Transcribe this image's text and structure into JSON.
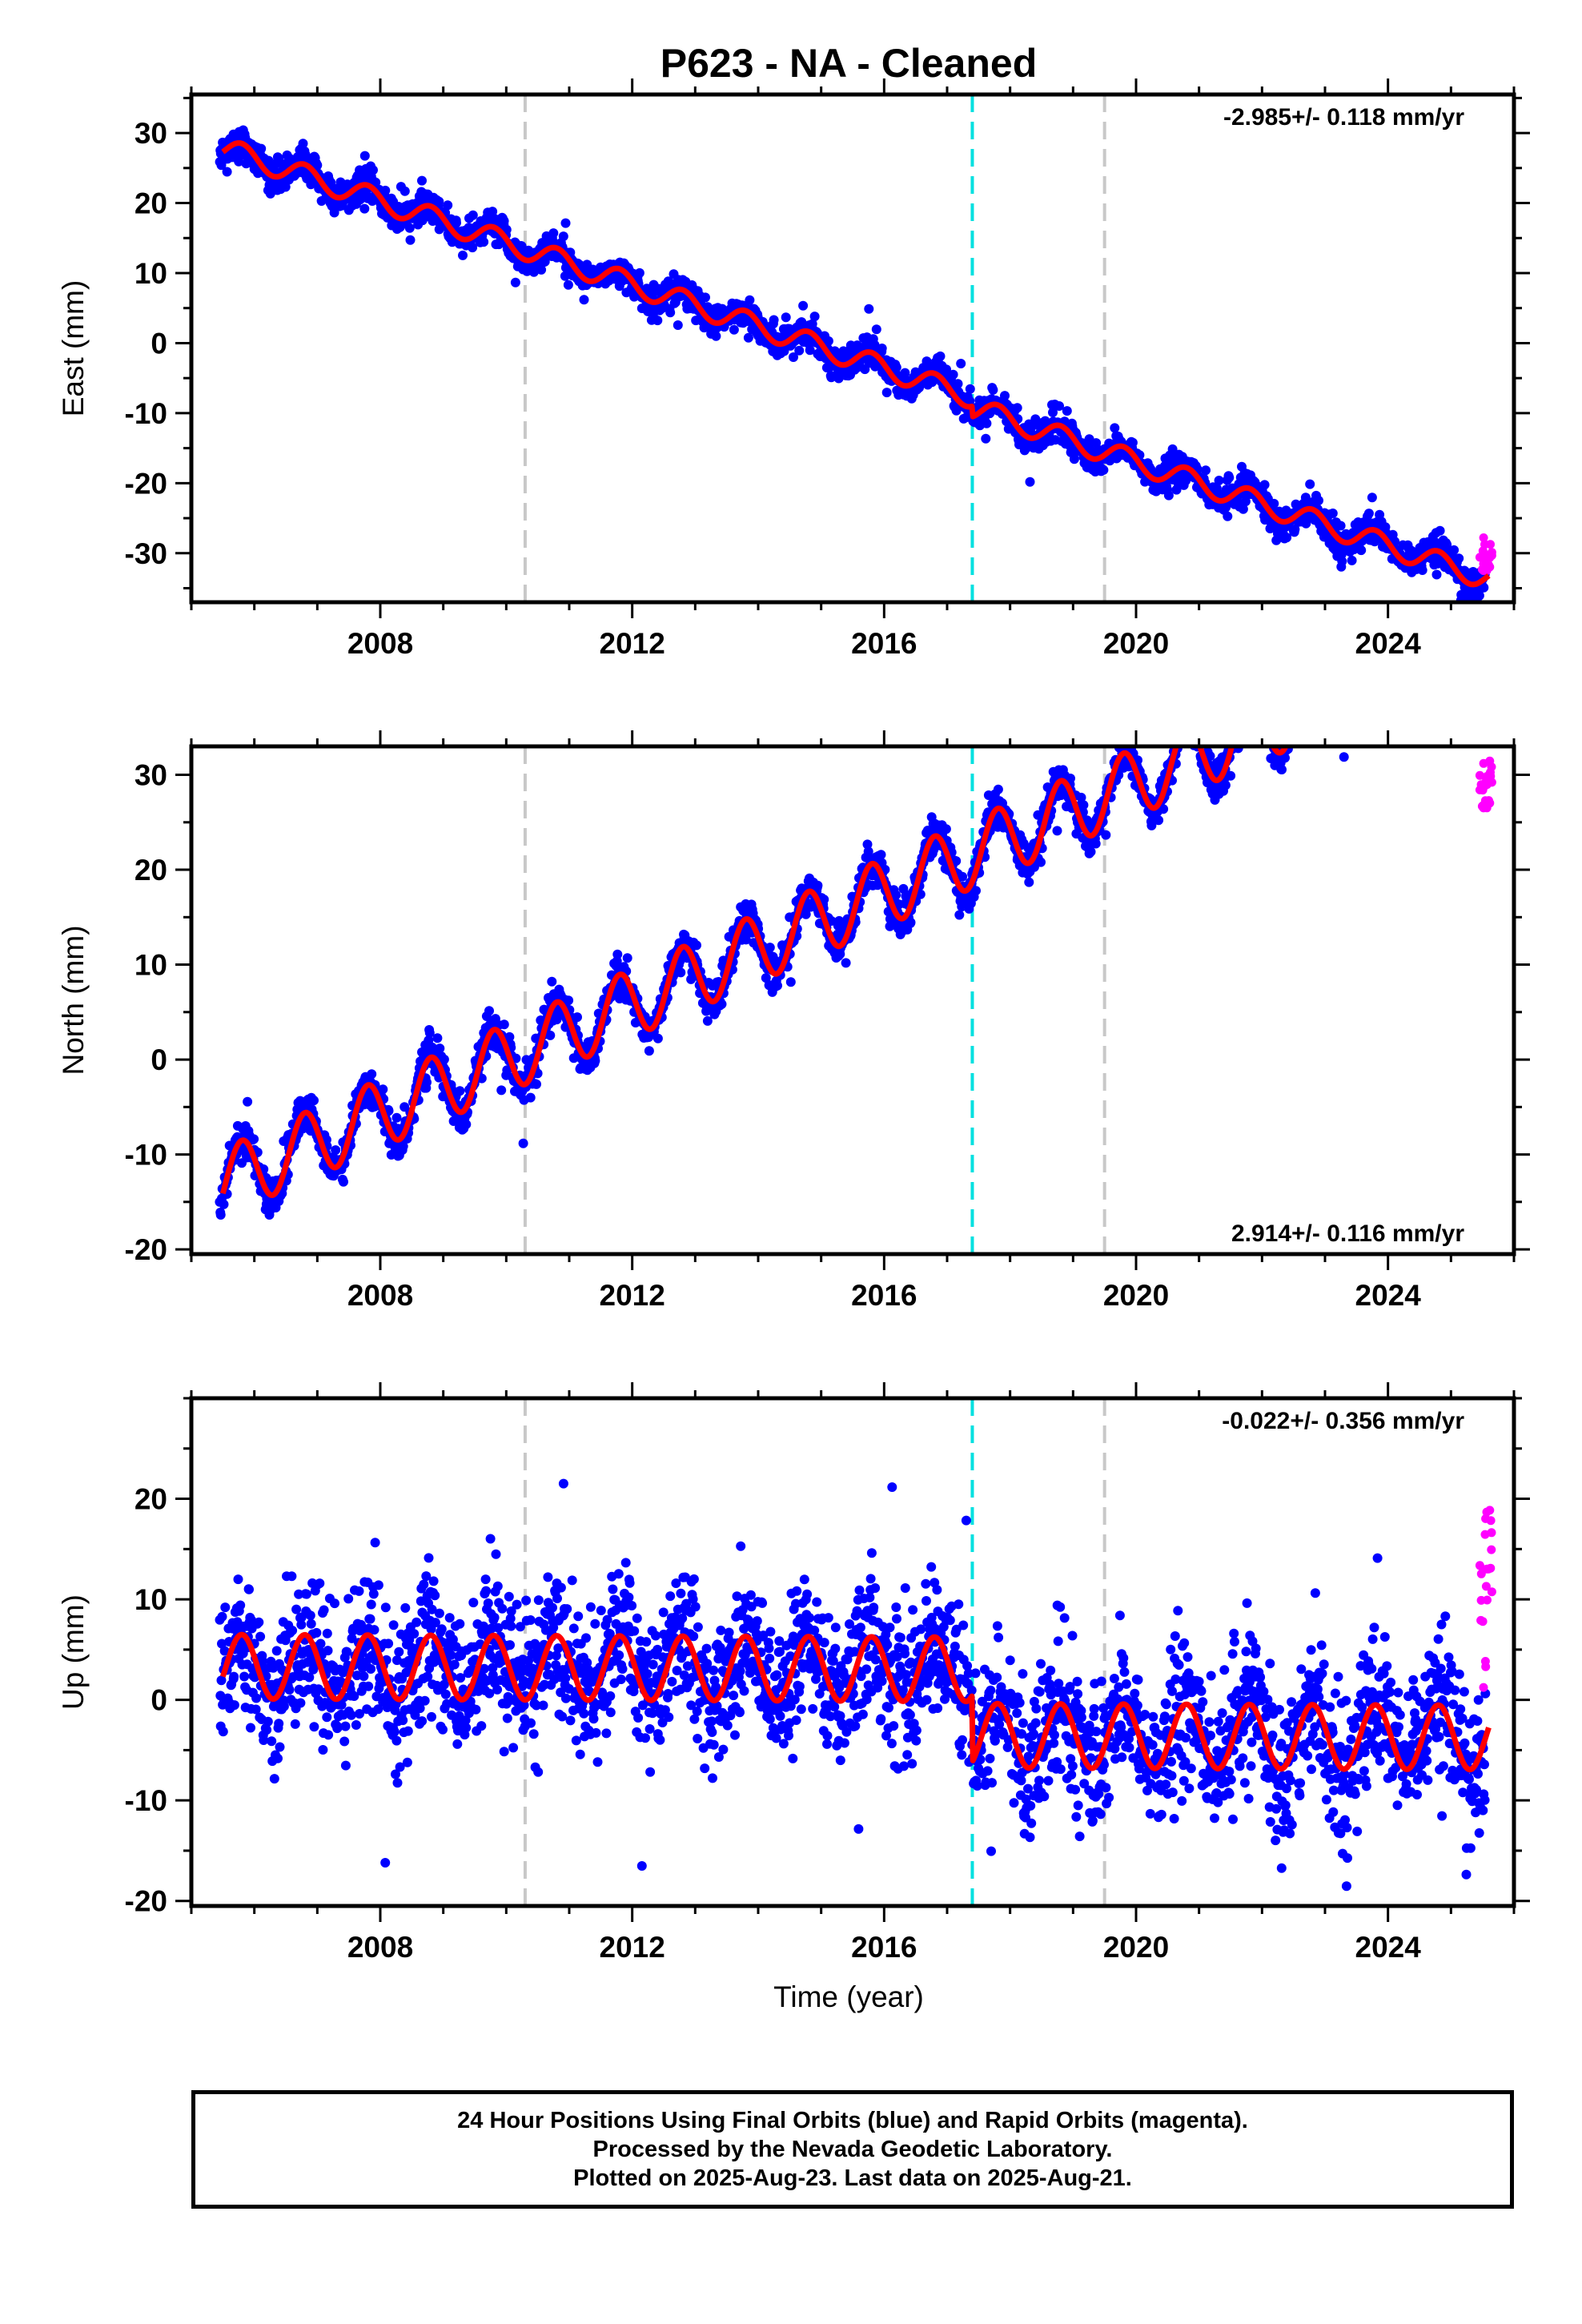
{
  "title": "P623  - NA - Cleaned",
  "xlabel": "Time (year)",
  "footer": {
    "line1": "24 Hour Positions Using Final Orbits (blue) and Rapid Orbits (magenta).",
    "line2": "Processed by the Nevada Geodetic Laboratory.",
    "line3": "Plotted on 2025-Aug-23. Last data on 2025-Aug-21."
  },
  "colors": {
    "final_orbits": "#0000ff",
    "rapid_orbits": "#ff00ff",
    "model": "#ff0000",
    "equipment_change": "#c8c8c8",
    "earthquake": "#00e0e0"
  },
  "chart_data": [
    {
      "type": "scatter",
      "ylabel": "East (mm)",
      "rate_label": "-2.985+/- 0.118 mm/yr",
      "xlim": [
        2005.0,
        2026.0
      ],
      "ylim": [
        -37,
        35.5
      ],
      "xticks": [
        2008,
        2012,
        2016,
        2020,
        2024
      ],
      "yticks": [
        -30,
        -20,
        -10,
        0,
        10,
        20,
        30
      ],
      "vlines": [
        {
          "x": 2010.3,
          "kind": "equipment_change"
        },
        {
          "x": 2017.4,
          "kind": "earthquake"
        },
        {
          "x": 2019.5,
          "kind": "equipment_change"
        }
      ],
      "model": {
        "t0": 2005.5,
        "y0": 27.8,
        "rate": -2.985,
        "amplitude": 1.6,
        "phase_year": 0.55,
        "steps": [
          {
            "x": 2017.4,
            "dy": -1.5
          }
        ],
        "x_range": [
          2005.5,
          2025.6
        ]
      },
      "noise": 1.1,
      "final_x_range": [
        2005.45,
        2025.55
      ],
      "rapid": {
        "x_range": [
          2025.45,
          2025.65
        ],
        "y_center": -30,
        "spread": 2.5
      }
    },
    {
      "type": "scatter",
      "ylabel": "North (mm)",
      "rate_label": "2.914+/- 0.116 mm/yr",
      "xlim": [
        2005.0,
        2026.0
      ],
      "ylim": [
        -20.5,
        33
      ],
      "xticks": [
        2008,
        2012,
        2016,
        2020,
        2024
      ],
      "yticks": [
        -20,
        -10,
        0,
        10,
        20,
        30
      ],
      "vlines": [
        {
          "x": 2010.3,
          "kind": "equipment_change"
        },
        {
          "x": 2017.4,
          "kind": "earthquake"
        },
        {
          "x": 2019.5,
          "kind": "equipment_change"
        }
      ],
      "model": {
        "t0": 2005.5,
        "y0": -13.0,
        "rate": 2.914,
        "amplitude": 3.6,
        "phase_year": 0.55,
        "steps": [],
        "x_range": [
          2005.5,
          2025.6
        ]
      },
      "noise": 1.0,
      "final_x_range": [
        2005.45,
        2025.55
      ],
      "rapid": {
        "x_range": [
          2025.45,
          2025.65
        ],
        "y_center": 29,
        "spread": 2.5
      }
    },
    {
      "type": "scatter",
      "ylabel": "Up (mm)",
      "rate_label": "-0.022+/- 0.356 mm/yr",
      "xlim": [
        2005.0,
        2026.0
      ],
      "ylim": [
        -20.5,
        30
      ],
      "xticks": [
        2008,
        2012,
        2016,
        2020,
        2024
      ],
      "yticks": [
        -20,
        -10,
        0,
        10,
        20
      ],
      "vlines": [
        {
          "x": 2010.3,
          "kind": "equipment_change"
        },
        {
          "x": 2017.4,
          "kind": "earthquake"
        },
        {
          "x": 2019.5,
          "kind": "equipment_change"
        }
      ],
      "model": {
        "t0": 2005.5,
        "y0": 3.3,
        "rate": -0.022,
        "amplitude": 3.2,
        "phase_year": 0.55,
        "steps": [
          {
            "x": 2017.4,
            "dy": -6.6
          }
        ],
        "x_range": [
          2005.5,
          2025.6
        ]
      },
      "noise": 3.5,
      "final_x_range": [
        2005.45,
        2025.55
      ],
      "rapid": {
        "x_range": [
          2025.45,
          2025.65
        ],
        "y_center": 10,
        "spread": 9
      }
    }
  ]
}
